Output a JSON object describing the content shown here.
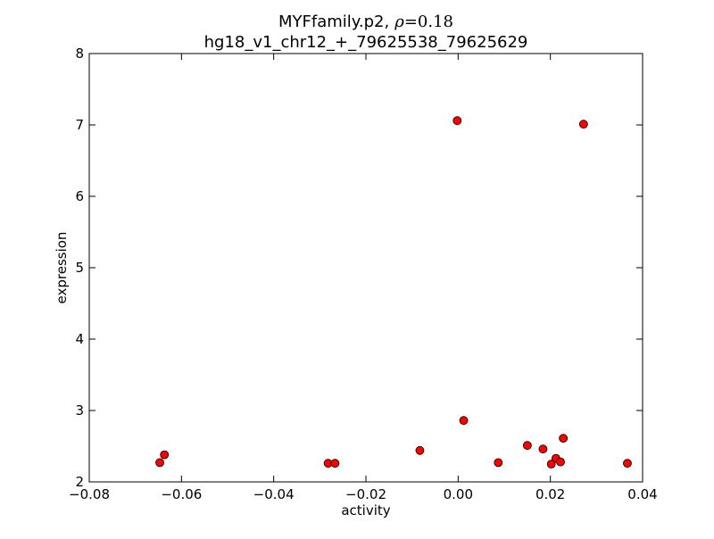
{
  "chart_data": {
    "type": "scatter",
    "title_main": "MYFfamily.p2,",
    "title_rho_symbol": "ρ",
    "title_rho_value": "=0.18",
    "subtitle": "hg18_v1_chr12_+_79625538_79625629",
    "xlabel": "activity",
    "ylabel": "expression",
    "xlim": [
      -0.08,
      0.04
    ],
    "ylim": [
      2,
      8
    ],
    "xticks": [
      -0.08,
      -0.06,
      -0.04,
      -0.02,
      0.0,
      0.02,
      0.04
    ],
    "xtick_labels": [
      "−0.08",
      "−0.06",
      "−0.04",
      "−0.02",
      "0.00",
      "0.02",
      "0.04"
    ],
    "yticks": [
      2,
      3,
      4,
      5,
      6,
      7,
      8
    ],
    "ytick_labels": [
      "2",
      "3",
      "4",
      "5",
      "6",
      "7",
      "8"
    ],
    "grid": false,
    "marker_color": "#ff0000",
    "marker_edge_color": "#000000",
    "points": [
      {
        "x": -0.0647,
        "y": 2.27
      },
      {
        "x": -0.0637,
        "y": 2.38
      },
      {
        "x": -0.0282,
        "y": 2.26
      },
      {
        "x": -0.0267,
        "y": 2.26
      },
      {
        "x": -0.0083,
        "y": 2.44
      },
      {
        "x": -0.0002,
        "y": 7.06
      },
      {
        "x": 0.0012,
        "y": 2.86
      },
      {
        "x": 0.0087,
        "y": 2.27
      },
      {
        "x": 0.015,
        "y": 2.51
      },
      {
        "x": 0.0184,
        "y": 2.46
      },
      {
        "x": 0.0202,
        "y": 2.25
      },
      {
        "x": 0.0212,
        "y": 2.33
      },
      {
        "x": 0.0222,
        "y": 2.28
      },
      {
        "x": 0.0228,
        "y": 2.61
      },
      {
        "x": 0.0272,
        "y": 7.01
      },
      {
        "x": 0.0367,
        "y": 2.26
      }
    ]
  }
}
